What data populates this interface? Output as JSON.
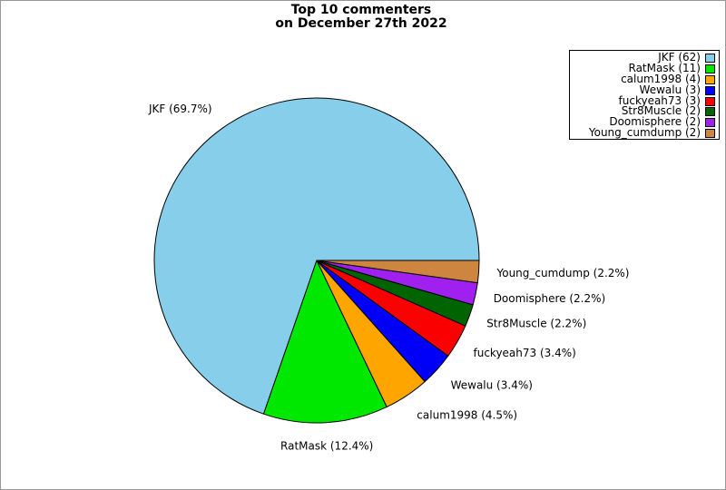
{
  "figure": {
    "title_line1": "Top 10 commenters",
    "title_line2": "on December 27th 2022"
  },
  "chart_data": {
    "type": "pie",
    "title": "Top 10 commenters on December 27th 2022",
    "start_angle_deg": 0,
    "direction": "counterclockwise",
    "total_count": 89,
    "legend_position": "upper right",
    "grid": false,
    "series": [
      {
        "name": "JKF",
        "count": 62,
        "percent": 69.7,
        "color": "#87CEEB",
        "slice_label": "JKF (69.7%)",
        "legend_label": "JKF (62)"
      },
      {
        "name": "RatMask",
        "count": 11,
        "percent": 12.4,
        "color": "#00E800",
        "slice_label": "RatMask (12.4%)",
        "legend_label": "RatMask (11)"
      },
      {
        "name": "calum1998",
        "count": 4,
        "percent": 4.5,
        "color": "#FFA500",
        "slice_label": "calum1998 (4.5%)",
        "legend_label": "calum1998 (4)"
      },
      {
        "name": "Wewalu",
        "count": 3,
        "percent": 3.4,
        "color": "#0000FA",
        "slice_label": "Wewalu (3.4%)",
        "legend_label": "Wewalu (3)"
      },
      {
        "name": "fuckyeah73",
        "count": 3,
        "percent": 3.4,
        "color": "#FA0000",
        "slice_label": "fuckyeah73 (3.4%)",
        "legend_label": "fuckyeah73 (3)"
      },
      {
        "name": "Str8Muscle",
        "count": 2,
        "percent": 2.2,
        "color": "#006400",
        "slice_label": "Str8Muscle (2.2%)",
        "legend_label": "Str8Muscle (2)"
      },
      {
        "name": "Doomisphere",
        "count": 2,
        "percent": 2.2,
        "color": "#A020F0",
        "slice_label": "Doomisphere (2.2%)",
        "legend_label": "Doomisphere (2)"
      },
      {
        "name": "Young_cumdump",
        "count": 2,
        "percent": 2.2,
        "color": "#CD853F",
        "slice_label": "Young_cumdump (2.2%)",
        "legend_label": "Young_cumdump (2)"
      }
    ]
  }
}
